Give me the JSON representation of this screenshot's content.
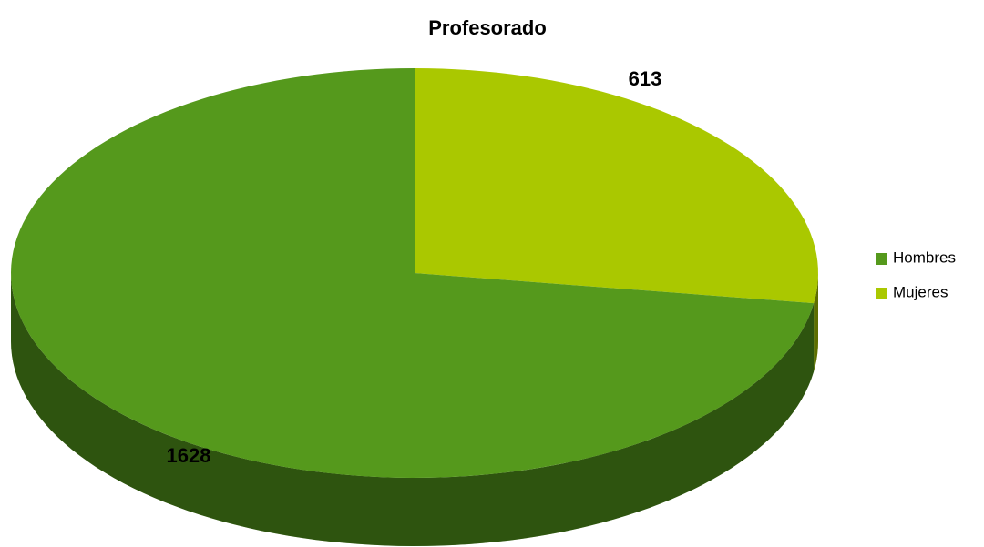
{
  "chart_data": {
    "type": "pie3d",
    "title": "Profesorado",
    "categories": [
      "Hombres",
      "Mujeres"
    ],
    "values": [
      1628,
      613
    ],
    "colors": [
      "#55991c",
      "#aac800"
    ],
    "start": "top",
    "direction": "counterclockwise-from-mujeres",
    "legend": "right"
  }
}
